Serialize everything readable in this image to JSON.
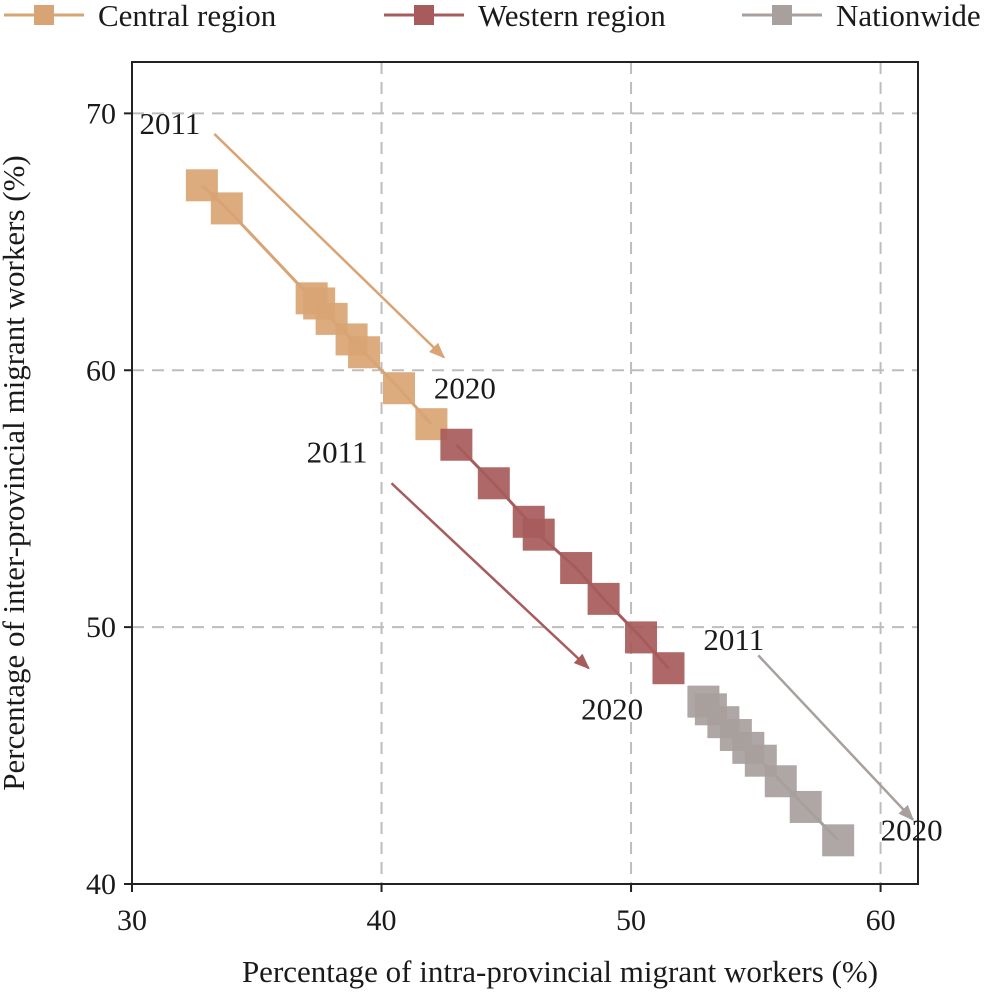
{
  "chart_data": {
    "type": "line",
    "xlabel": "Percentage of intra-provincial migrant workers (%)",
    "ylabel": "Percentage of inter-provincial migrant workers (%)",
    "xlim": [
      30,
      61.5
    ],
    "ylim": [
      40,
      72
    ],
    "xticks": [
      30,
      40,
      50,
      60
    ],
    "yticks": [
      40,
      50,
      60,
      70
    ],
    "grid": true,
    "legend_position": "top",
    "series": [
      {
        "name": "Central region",
        "color": "#d9a473",
        "marker": "square",
        "points": [
          [
            32.8,
            67.2
          ],
          [
            33.8,
            66.3
          ],
          [
            37.2,
            62.8
          ],
          [
            37.5,
            62.6
          ],
          [
            38.0,
            62.0
          ],
          [
            38.8,
            61.2
          ],
          [
            39.3,
            60.7
          ],
          [
            40.7,
            59.3
          ],
          [
            42.0,
            57.9
          ]
        ],
        "annotations": {
          "start": "2011",
          "end": "2020"
        }
      },
      {
        "name": "Western region",
        "color": "#a85b5b",
        "marker": "square",
        "points": [
          [
            43.0,
            57.1
          ],
          [
            44.5,
            55.6
          ],
          [
            45.9,
            54.1
          ],
          [
            46.3,
            53.6
          ],
          [
            47.8,
            52.3
          ],
          [
            48.9,
            51.1
          ],
          [
            50.4,
            49.6
          ],
          [
            51.5,
            48.4
          ]
        ],
        "annotations": {
          "start": "2011",
          "end": "2020"
        }
      },
      {
        "name": "Nationwide",
        "color": "#a8a09d",
        "marker": "square",
        "points": [
          [
            52.9,
            47.1
          ],
          [
            53.2,
            46.8
          ],
          [
            53.7,
            46.3
          ],
          [
            54.2,
            45.8
          ],
          [
            54.7,
            45.3
          ],
          [
            55.2,
            44.8
          ],
          [
            56.0,
            44.0
          ],
          [
            57.0,
            43.0
          ],
          [
            58.3,
            41.7
          ]
        ],
        "annotations": {
          "start": "2011",
          "end": "2020"
        }
      }
    ],
    "arrows": [
      {
        "series": "Central region",
        "from": [
          33.3,
          69.2
        ],
        "to": [
          42.5,
          60.5
        ],
        "start_label": "2011",
        "end_label": "2020",
        "start_label_at": [
          30.3,
          69.2
        ],
        "end_label_at": [
          42.1,
          58.9
        ]
      },
      {
        "series": "Western region",
        "from": [
          40.4,
          55.6
        ],
        "to": [
          48.3,
          48.4
        ],
        "start_label": "2011",
        "end_label": "2020",
        "start_label_at": [
          37.0,
          56.4
        ],
        "end_label_at": [
          48.0,
          46.4
        ]
      },
      {
        "series": "Nationwide",
        "from": [
          55.1,
          48.9
        ],
        "to": [
          61.3,
          42.5
        ],
        "start_label": "2011",
        "end_label": "2020",
        "start_label_at": [
          52.9,
          49.1
        ],
        "end_label_at": [
          60.0,
          41.7
        ]
      }
    ]
  }
}
